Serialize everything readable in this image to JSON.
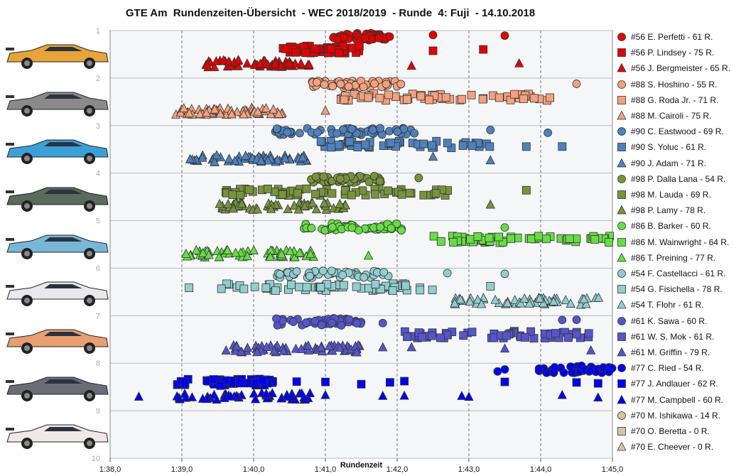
{
  "chart_data": {
    "type": "scatter",
    "title": "GTE Am  Rundenzeiten-Übersicht  - WEC 2018/2019  - Runde  4: Fuji  - 14.10.2018",
    "xlabel": "Rundenzeit",
    "ylabel": "",
    "xlim": [
      98.0,
      105.0
    ],
    "ylim": [
      1,
      10
    ],
    "x_ticks": [
      "1:38,0",
      "1:39,0",
      "1:40,0",
      "1:41,0",
      "1:42,0",
      "1:43,0",
      "1:44,0",
      "1:45,0"
    ],
    "y_ticks": [
      "1",
      "2",
      "3",
      "4",
      "5",
      "6",
      "7",
      "8",
      "9",
      "10"
    ],
    "grid": "vertical dashed",
    "legend_position": "right",
    "teams": [
      {
        "car": "#56",
        "color": "#e00000",
        "drivers": [
          {
            "label": "#56 E. Perfetti - 61 R.",
            "marker": "circle",
            "x_range": [
              101.1,
              101.9
            ],
            "outliers": [
              102.5,
              103.5
            ]
          },
          {
            "label": "#56 P. Lindsey - 75 R.",
            "marker": "square",
            "x_range": [
              100.4,
              101.5
            ],
            "outliers": [
              102.5,
              103.2
            ]
          },
          {
            "label": "#56 J. Bergmeister - 65 R.",
            "marker": "triangle",
            "x_range": [
              99.3,
              100.8
            ],
            "outliers": [
              102.2,
              103.7
            ]
          }
        ]
      },
      {
        "car": "#88",
        "color": "#f4a17e",
        "drivers": [
          {
            "label": "#88 S. Hoshino - 55 R.",
            "marker": "circle",
            "x_range": [
              100.8,
              102.1
            ],
            "outliers": [
              104.5
            ]
          },
          {
            "label": "#88 G. Roda Jr. - 71 R.",
            "marker": "square",
            "x_range": [
              101.2,
              104.2
            ],
            "outliers": []
          },
          {
            "label": "#88 M. Cairoli - 75 R.",
            "marker": "triangle",
            "x_range": [
              98.9,
              100.4
            ],
            "outliers": [
              101.0
            ]
          }
        ]
      },
      {
        "car": "#90",
        "color": "#4f81bd",
        "drivers": [
          {
            "label": "#90 C. Eastwood - 69 R.",
            "marker": "circle",
            "x_range": [
              100.3,
              102.3
            ],
            "outliers": [
              103.3,
              104.1
            ]
          },
          {
            "label": "#90 S. Yoluc - 61 R.",
            "marker": "square",
            "x_range": [
              100.9,
              103.3
            ],
            "outliers": [
              103.8,
              104.3
            ]
          },
          {
            "label": "#90 J. Adam - 71 R.",
            "marker": "triangle",
            "x_range": [
              99.1,
              100.8
            ],
            "outliers": [
              102.5,
              103.3
            ]
          }
        ]
      },
      {
        "car": "#98",
        "color": "#77933c",
        "drivers": [
          {
            "label": "#98 P. Dalla Lana - 54 R.",
            "marker": "circle",
            "x_range": [
              100.8,
              101.8
            ],
            "outliers": [
              102.3
            ]
          },
          {
            "label": "#98 M. Lauda - 69 R.",
            "marker": "square",
            "x_range": [
              99.6,
              102.8
            ],
            "outliers": [
              103.8
            ]
          },
          {
            "label": "#98 P. Lamy - 78 R.",
            "marker": "triangle",
            "x_range": [
              99.5,
              101.3
            ],
            "outliers": [
              103.3
            ]
          }
        ]
      },
      {
        "car": "#86",
        "color": "#66dd44",
        "drivers": [
          {
            "label": "#86 B. Barker - 60 R.",
            "marker": "circle",
            "x_range": [
              100.7,
              102.2
            ],
            "outliers": [
              103.5
            ]
          },
          {
            "label": "#86 M. Wainwright - 64 R.",
            "marker": "square",
            "x_range": [
              102.5,
              105.0
            ],
            "outliers": []
          },
          {
            "label": "#86 T. Preining - 77 R.",
            "marker": "triangle",
            "x_range": [
              99.0,
              100.9
            ],
            "outliers": [
              101.6
            ]
          }
        ]
      },
      {
        "car": "#54",
        "color": "#92cdd0",
        "drivers": [
          {
            "label": "#54 F. Castellacci - 61 R.",
            "marker": "circle",
            "x_range": [
              100.3,
              101.9
            ],
            "outliers": [
              102.7,
              103.5
            ]
          },
          {
            "label": "#54 G. Fisichella - 78 R.",
            "marker": "square",
            "x_range": [
              99.5,
              102.5
            ],
            "outliers": [
              99.1,
              103.3
            ]
          },
          {
            "label": "#54 T. Flohr - 61 R.",
            "marker": "triangle",
            "x_range": [
              102.6,
              104.9
            ],
            "outliers": []
          }
        ]
      },
      {
        "car": "#61",
        "color": "#5555cc",
        "drivers": [
          {
            "label": "#61 K. Sawa - 60 R.",
            "marker": "circle",
            "x_range": [
              100.3,
              101.5
            ],
            "outliers": [
              101.8,
              104.3,
              104.5
            ]
          },
          {
            "label": "#61 W. S. Mok - 61 R.",
            "marker": "square",
            "x_range": [
              102.1,
              104.8
            ],
            "outliers": []
          },
          {
            "label": "#61 M. Griffin - 79 R.",
            "marker": "triangle",
            "x_range": [
              99.6,
              101.5
            ],
            "outliers": [
              101.8,
              102.2,
              103.5,
              104.7
            ]
          }
        ]
      },
      {
        "car": "#77",
        "color": "#0000ee",
        "drivers": [
          {
            "label": "#77 C. Ried - 54 R.",
            "marker": "circle",
            "x_range": [
              103.9,
              105.0
            ],
            "outliers": [
              103.4,
              103.5
            ]
          },
          {
            "label": "#77 J. Andlauer - 62 R.",
            "marker": "square",
            "x_range": [
              98.9,
              100.3
            ],
            "outliers": [
              100.6,
              101.0,
              101.5,
              101.9,
              102.1,
              103.5,
              104.5,
              104.8
            ]
          },
          {
            "label": "#77 M. Campbell - 60 R.",
            "marker": "triangle",
            "x_range": [
              98.9,
              100.8
            ],
            "outliers": [
              98.4,
              101.0,
              101.8,
              102.1,
              102.9,
              103.0,
              104.3,
              104.8
            ]
          }
        ]
      },
      {
        "car": "#70",
        "color": "#d9c3a5",
        "drivers": [
          {
            "label": "#70 M. Ishikawa - 14 R.",
            "marker": "circle",
            "x_range": [],
            "outliers": []
          },
          {
            "label": "#70 O. Beretta - 0 R.",
            "marker": "square",
            "x_range": [],
            "outliers": []
          },
          {
            "label": "#70 E. Cheever - 0 R.",
            "marker": "triangle",
            "x_range": [],
            "outliers": []
          }
        ]
      }
    ]
  },
  "colors": {
    "symbols": [
      "#e00000",
      "#f4a17e",
      "#4f81bd",
      "#77933c",
      "#66dd44",
      "#92cdd0",
      "#5555cc",
      "#0000ee",
      "#d9c3a5"
    ],
    "car_bodies": [
      "#e8a33a",
      "#8a8a8a",
      "#3aa0d8",
      "#5b6a5b",
      "#79b7d8",
      "#e8e8ee",
      "#e8a070",
      "#6c6c78",
      "#f0e8e8"
    ],
    "plot_bg": "#f4f6f8"
  }
}
